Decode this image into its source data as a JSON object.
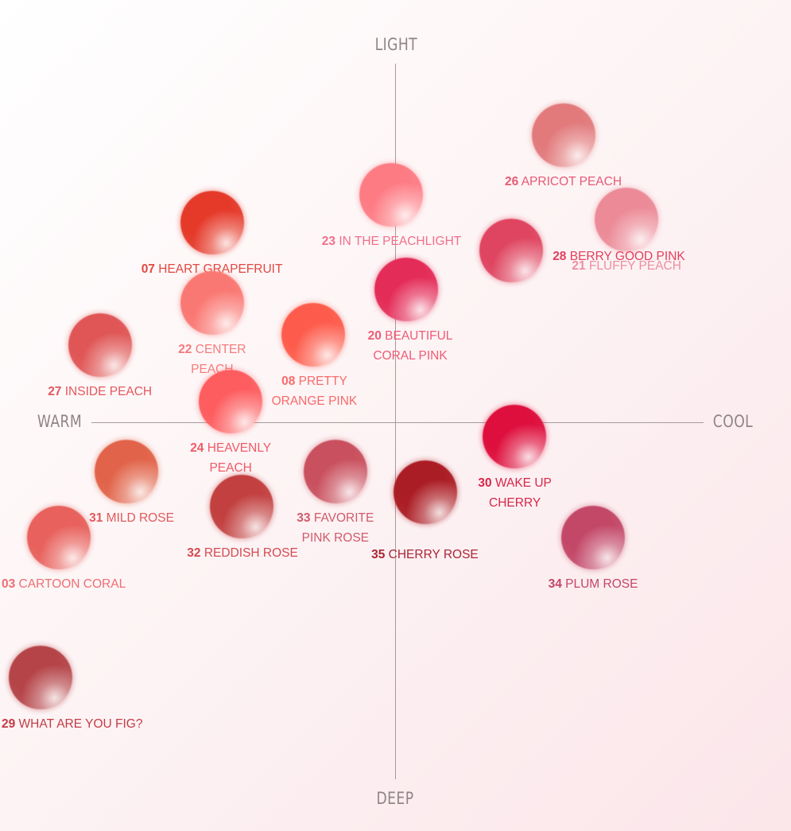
{
  "axes": {
    "top": "LIGHT",
    "bottom": "DEEP",
    "left": "WARM",
    "right": "COOL"
  },
  "shades": [
    {
      "id": "26",
      "number": "26",
      "line1": "APRICOT PEACH",
      "line2": "",
      "color": "#e27a7c",
      "text_color": "#e65a74",
      "warmth": 0.45,
      "lightness": 0.82
    },
    {
      "id": "23",
      "number": "23",
      "line1": "IN THE PEACHLIGHT",
      "line2": "",
      "color": "#fd7c84",
      "text_color": "#f0708a",
      "warmth": -0.01,
      "lightness": 0.65
    },
    {
      "id": "21",
      "number": "21",
      "line1": "FLUFFY PEACH",
      "line2": "",
      "color": "#ec8a97",
      "text_color": "#ec8fa2",
      "warmth": 0.62,
      "lightness": 0.58
    },
    {
      "id": "07",
      "number": "07",
      "line1": "HEART GRAPEFRUIT",
      "line2": "",
      "color": "#e53a2a",
      "text_color": "#e24840",
      "warmth": -0.49,
      "lightness": 0.57
    },
    {
      "id": "28",
      "number": "28",
      "line1": "BERRY GOOD PINK",
      "line2": "",
      "color": "#df4560",
      "text_color": "#e2405f",
      "warmth": 0.31,
      "lightness": 0.49
    },
    {
      "id": "20",
      "number": "20",
      "line1": "BEAUTIFUL",
      "line2": "CORAL PINK",
      "color": "#e42c58",
      "text_color": "#ee5b75",
      "warmth": 0.03,
      "lightness": 0.38
    },
    {
      "id": "22",
      "number": "22",
      "line1": "CENTER",
      "line2": "PEACH",
      "color": "#fa7873",
      "text_color": "#f57b7b",
      "warmth": -0.49,
      "lightness": 0.34
    },
    {
      "id": "08",
      "number": "08",
      "line1": "PRETTY",
      "line2": "ORANGE PINK",
      "color": "#fd5c4c",
      "text_color": "#f76b6b",
      "warmth": -0.22,
      "lightness": 0.25
    },
    {
      "id": "27",
      "number": "27",
      "line1": "INSIDE PEACH",
      "line2": "",
      "color": "#e05656",
      "text_color": "#e3585e",
      "warmth": -0.79,
      "lightness": 0.22
    },
    {
      "id": "24",
      "number": "24",
      "line1": "HEAVENLY",
      "line2": "PEACH",
      "color": "#fd5d5f",
      "text_color": "#f05a66",
      "warmth": -0.44,
      "lightness": 0.06
    },
    {
      "id": "30",
      "number": "30",
      "line1": "WAKE UP",
      "line2": "CHERRY",
      "color": "#de0f3c",
      "text_color": "#d8264a",
      "warmth": 0.32,
      "lightness": -0.04
    },
    {
      "id": "31",
      "number": "31",
      "line1": "MILD ROSE",
      "line2": "",
      "color": "#e16349",
      "text_color": "#e3585c",
      "warmth": -0.72,
      "lightness": -0.14
    },
    {
      "id": "33",
      "number": "33",
      "line1": "FAVORITE",
      "line2": "PINK ROSE",
      "color": "#c9505e",
      "text_color": "#d05a6a",
      "warmth": -0.16,
      "lightness": -0.14
    },
    {
      "id": "32",
      "number": "32",
      "line1": "REDDISH ROSE",
      "line2": "",
      "color": "#c24040",
      "text_color": "#d44a50",
      "warmth": -0.41,
      "lightness": -0.24
    },
    {
      "id": "35",
      "number": "35",
      "line1": "CHERRY ROSE",
      "line2": "",
      "color": "#ab1d24",
      "text_color": "#ab2535",
      "warmth": 0.08,
      "lightness": -0.2
    },
    {
      "id": "03",
      "number": "03",
      "line1": "CARTOON CORAL",
      "line2": "",
      "color": "#e8615c",
      "text_color": "#ee6f73",
      "warmth": -0.9,
      "lightness": -0.33
    },
    {
      "id": "34",
      "number": "34",
      "line1": "PLUM ROSE",
      "line2": "",
      "color": "#c34868",
      "text_color": "#c44568",
      "warmth": 0.53,
      "lightness": -0.33
    },
    {
      "id": "29",
      "number": "29",
      "line1": "WHAT ARE YOU FIG?",
      "line2": "",
      "color": "#b54448",
      "text_color": "#c23c45",
      "warmth": -0.95,
      "lightness": -0.73
    }
  ]
}
